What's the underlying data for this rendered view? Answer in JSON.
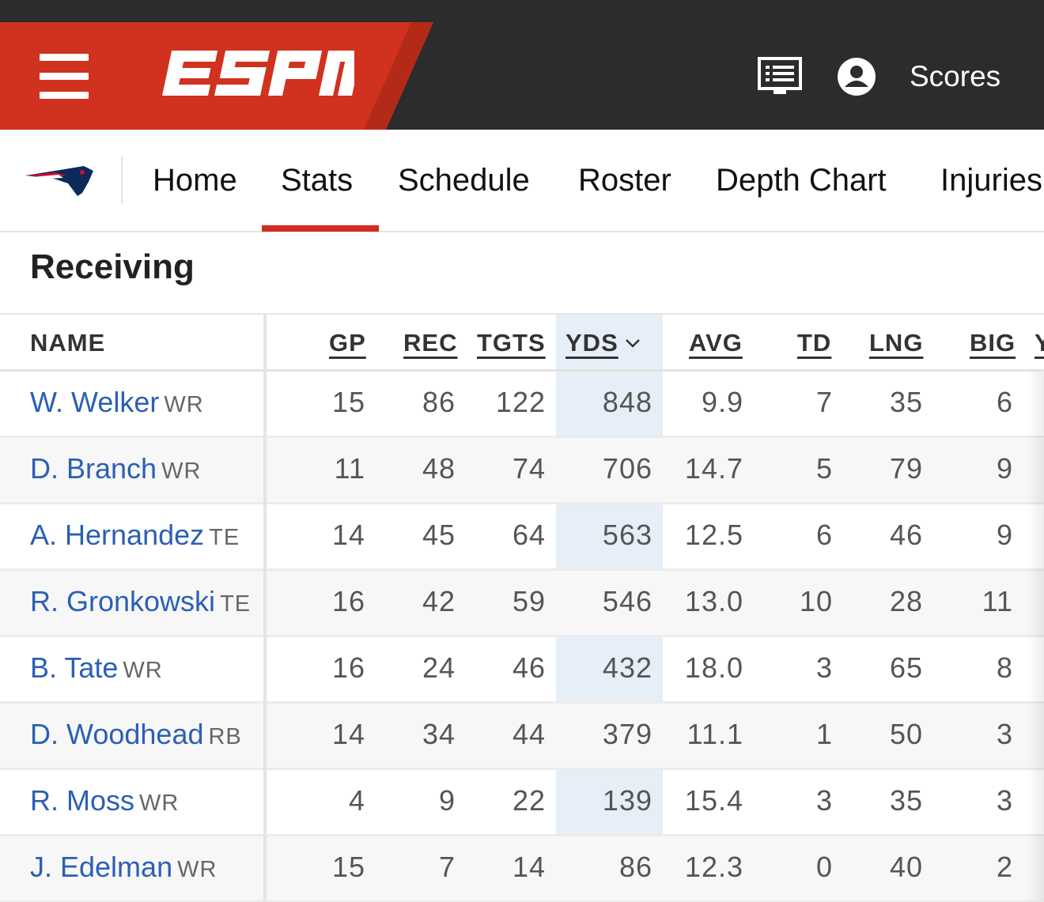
{
  "header": {
    "brand": "ESPN",
    "scores_label": "Scores",
    "brand_color": "#d0321f",
    "bar_color": "#2b2c2d"
  },
  "team_nav": {
    "team": "New England Patriots",
    "tabs": [
      {
        "label": "Home"
      },
      {
        "label": "Stats"
      },
      {
        "label": "Schedule"
      },
      {
        "label": "Roster"
      },
      {
        "label": "Depth Chart"
      },
      {
        "label": "Injuries"
      }
    ],
    "active_tab": "Stats",
    "accent": "#d22b1f"
  },
  "section": {
    "title": "Receiving"
  },
  "table": {
    "columns": [
      "NAME",
      "GP",
      "REC",
      "TGTS",
      "YDS",
      "AVG",
      "TD",
      "LNG",
      "BIG",
      "Y"
    ],
    "sorted_by": "YDS",
    "rows": [
      {
        "name": "W. Welker",
        "pos": "WR",
        "gp": "15",
        "rec": "86",
        "tgts": "122",
        "yds": "848",
        "avg": "9.9",
        "td": "7",
        "lng": "35",
        "big": "6"
      },
      {
        "name": "D. Branch",
        "pos": "WR",
        "gp": "11",
        "rec": "48",
        "tgts": "74",
        "yds": "706",
        "avg": "14.7",
        "td": "5",
        "lng": "79",
        "big": "9"
      },
      {
        "name": "A. Hernandez",
        "pos": "TE",
        "gp": "14",
        "rec": "45",
        "tgts": "64",
        "yds": "563",
        "avg": "12.5",
        "td": "6",
        "lng": "46",
        "big": "9"
      },
      {
        "name": "R. Gronkowski",
        "pos": "TE",
        "gp": "16",
        "rec": "42",
        "tgts": "59",
        "yds": "546",
        "avg": "13.0",
        "td": "10",
        "lng": "28",
        "big": "11"
      },
      {
        "name": "B. Tate",
        "pos": "WR",
        "gp": "16",
        "rec": "24",
        "tgts": "46",
        "yds": "432",
        "avg": "18.0",
        "td": "3",
        "lng": "65",
        "big": "8"
      },
      {
        "name": "D. Woodhead",
        "pos": "RB",
        "gp": "14",
        "rec": "34",
        "tgts": "44",
        "yds": "379",
        "avg": "11.1",
        "td": "1",
        "lng": "50",
        "big": "3"
      },
      {
        "name": "R. Moss",
        "pos": "WR",
        "gp": "4",
        "rec": "9",
        "tgts": "22",
        "yds": "139",
        "avg": "15.4",
        "td": "3",
        "lng": "35",
        "big": "3"
      },
      {
        "name": "J. Edelman",
        "pos": "WR",
        "gp": "15",
        "rec": "7",
        "tgts": "14",
        "yds": "86",
        "avg": "12.3",
        "td": "0",
        "lng": "40",
        "big": "2"
      }
    ]
  }
}
